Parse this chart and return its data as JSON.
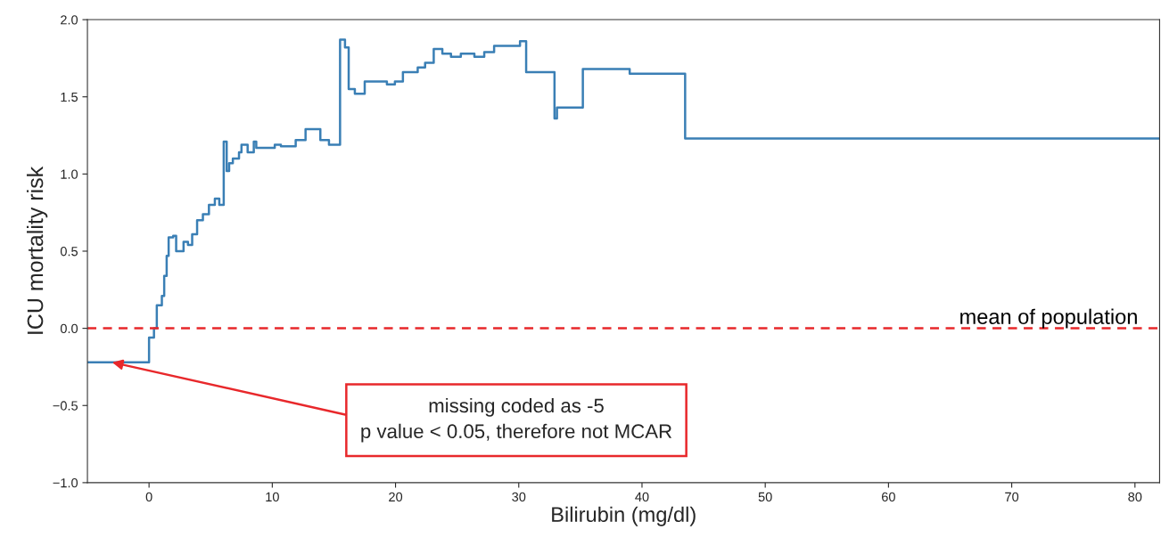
{
  "chart_data": {
    "type": "step",
    "xlabel": "Bilirubin (mg/dl)",
    "ylabel": "ICU mortality risk",
    "series": [
      {
        "color": "#3a7fb5",
        "x": [
          -5,
          0,
          0.4,
          0.63,
          1.04,
          1.23,
          1.43,
          1.59,
          1.96,
          2.2,
          2.8,
          3.16,
          3.5,
          3.9,
          4.37,
          4.86,
          5.34,
          5.7,
          6.06,
          6.3,
          6.5,
          6.8,
          7.3,
          7.5,
          8.0,
          8.5,
          8.7,
          10.2,
          10.7,
          11.9,
          12.7,
          13.9,
          14.6,
          15.5,
          15.9,
          16.2,
          16.7,
          17.5,
          19.3,
          19.95,
          20.6,
          21.8,
          22.4,
          23.1,
          23.8,
          24.5,
          25.3,
          26.4,
          27.2,
          28.0,
          30.1,
          30.6,
          32.9,
          33.1,
          35.2,
          39.0,
          43.5,
          82
        ],
        "values": [
          -0.22,
          -0.06,
          0.0,
          0.15,
          0.21,
          0.34,
          0.47,
          0.59,
          0.6,
          0.5,
          0.56,
          0.54,
          0.61,
          0.7,
          0.74,
          0.8,
          0.84,
          0.8,
          1.21,
          1.02,
          1.07,
          1.1,
          1.14,
          1.19,
          1.14,
          1.21,
          1.17,
          1.19,
          1.18,
          1.22,
          1.29,
          1.22,
          1.19,
          1.87,
          1.82,
          1.55,
          1.52,
          1.6,
          1.58,
          1.6,
          1.66,
          1.69,
          1.72,
          1.81,
          1.78,
          1.76,
          1.78,
          1.76,
          1.79,
          1.83,
          1.86,
          1.66,
          1.36,
          1.43,
          1.68,
          1.65,
          1.23,
          1.23
        ]
      }
    ],
    "xlim": [
      -5,
      82
    ],
    "xticks": [
      0,
      10,
      20,
      30,
      40,
      50,
      60,
      70,
      80
    ],
    "ylim": [
      -1,
      2
    ],
    "yticks": [
      {
        "value": -1,
        "label": "−1.0"
      },
      {
        "value": -0.5,
        "label": "−0.5"
      },
      {
        "value": 0,
        "label": "0.0"
      },
      {
        "value": 0.5,
        "label": "0.5"
      },
      {
        "value": 1,
        "label": "1.0"
      },
      {
        "value": 1.5,
        "label": "1.5"
      },
      {
        "value": 2,
        "label": "2.0"
      }
    ],
    "ref_lines": [
      {
        "axis": "y",
        "value": 0,
        "label": "mean of population",
        "color": "#e8282b",
        "line_style": "dashed"
      }
    ],
    "annotations": [
      {
        "text": "missing coded as -5\np value < 0.05, therefore not MCAR",
        "x": -3,
        "y": -0.22
      }
    ],
    "grid": false,
    "legend": false
  }
}
